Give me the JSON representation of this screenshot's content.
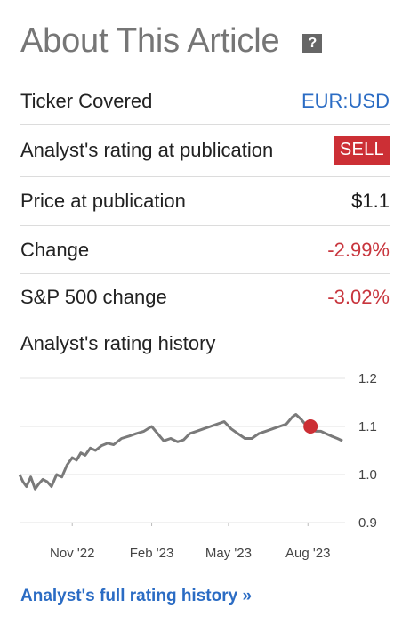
{
  "header": {
    "title": "About This Article",
    "help_icon": "?"
  },
  "rows": [
    {
      "label": "Ticker Covered",
      "value": "EUR:USD"
    },
    {
      "label": "Analyst's rating at publication",
      "value": "SELL"
    },
    {
      "label": "Price at publication",
      "value": "$1.1"
    },
    {
      "label": "Change",
      "value": "-2.99%"
    },
    {
      "label": "S&P 500 change",
      "value": "-3.02%"
    }
  ],
  "history": {
    "label": "Analyst's rating history",
    "link": "Analyst's full rating history »"
  },
  "colors": {
    "link": "#2b6cc4",
    "negative": "#c8353d",
    "sell_badge": "#cc2f35",
    "line": "#7a7a7a",
    "marker": "#cc2f35"
  },
  "chart_data": {
    "type": "line",
    "ylim": [
      0.9,
      1.2
    ],
    "y_ticks": [
      "1.2",
      "1.1",
      "1.0",
      "0.9"
    ],
    "x_ticks": [
      "Nov '22",
      "Feb '23",
      "May '23",
      "Aug '23"
    ],
    "grid": true,
    "series": [
      {
        "x": [
          "2022-09-01",
          "2022-09-05",
          "2022-09-09",
          "2022-09-14",
          "2022-09-19",
          "2022-09-23",
          "2022-09-28",
          "2022-10-03",
          "2022-10-08",
          "2022-10-14",
          "2022-10-20",
          "2022-10-26",
          "2022-11-01",
          "2022-11-06",
          "2022-11-11",
          "2022-11-16",
          "2022-11-22",
          "2022-11-28",
          "2022-12-05",
          "2022-12-12",
          "2022-12-19",
          "2022-12-28",
          "2023-01-06",
          "2023-01-14",
          "2023-01-23",
          "2023-02-01",
          "2023-02-08",
          "2023-02-15",
          "2023-02-23",
          "2023-03-03",
          "2023-03-10",
          "2023-03-17",
          "2023-03-25",
          "2023-04-02",
          "2023-04-10",
          "2023-04-18",
          "2023-04-26",
          "2023-05-04",
          "2023-05-12",
          "2023-05-20",
          "2023-05-28",
          "2023-06-05",
          "2023-06-13",
          "2023-06-21",
          "2023-06-29",
          "2023-07-07",
          "2023-07-14",
          "2023-07-18",
          "2023-07-24",
          "2023-07-31",
          "2023-08-04",
          "2023-08-10",
          "2023-08-16",
          "2023-08-22",
          "2023-08-28",
          "2023-09-04",
          "2023-09-10"
        ],
        "y": [
          1.0,
          0.985,
          0.975,
          0.995,
          0.97,
          0.98,
          0.99,
          0.985,
          0.975,
          1.0,
          0.995,
          1.02,
          1.035,
          1.03,
          1.045,
          1.04,
          1.055,
          1.05,
          1.06,
          1.065,
          1.062,
          1.075,
          1.08,
          1.085,
          1.09,
          1.1,
          1.085,
          1.07,
          1.075,
          1.068,
          1.072,
          1.085,
          1.09,
          1.095,
          1.1,
          1.105,
          1.11,
          1.095,
          1.085,
          1.075,
          1.075,
          1.085,
          1.09,
          1.095,
          1.1,
          1.105,
          1.12,
          1.125,
          1.115,
          1.1,
          1.1,
          1.09,
          1.09,
          1.085,
          1.08,
          1.075,
          1.07
        ]
      }
    ],
    "marker": {
      "x": "2023-08-04",
      "y": 1.1,
      "color": "#cc2f35"
    }
  }
}
